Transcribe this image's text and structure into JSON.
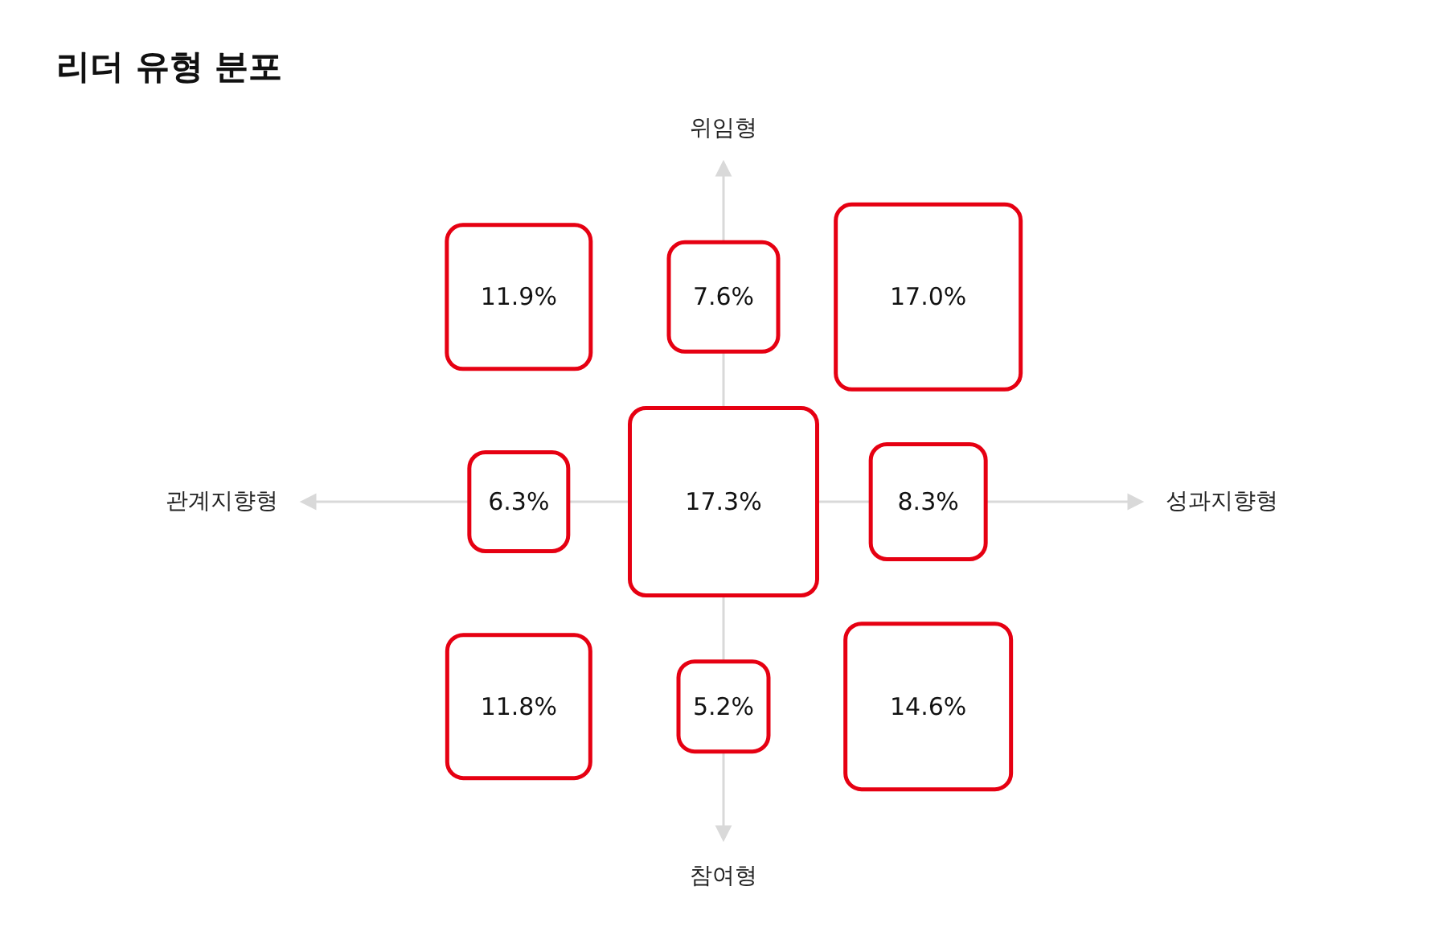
{
  "chart_data": {
    "type": "other",
    "title": "리더 유형 분포",
    "categories": [
      null,
      null,
      null,
      null,
      null,
      null,
      null,
      null,
      null
    ],
    "values": [
      11.9,
      7.6,
      17.0,
      6.3,
      17.3,
      8.3,
      11.8,
      5.2,
      14.6
    ],
    "value_labels": [
      "11.9%",
      "7.6%",
      "17.0%",
      "6.3%",
      "17.3%",
      "8.3%",
      "11.8%",
      "5.2%",
      "14.6%"
    ],
    "color": "#e60012",
    "annotations": [
      "위임형",
      "참여형",
      "관계지향형",
      "성과지향형"
    ]
  }
}
